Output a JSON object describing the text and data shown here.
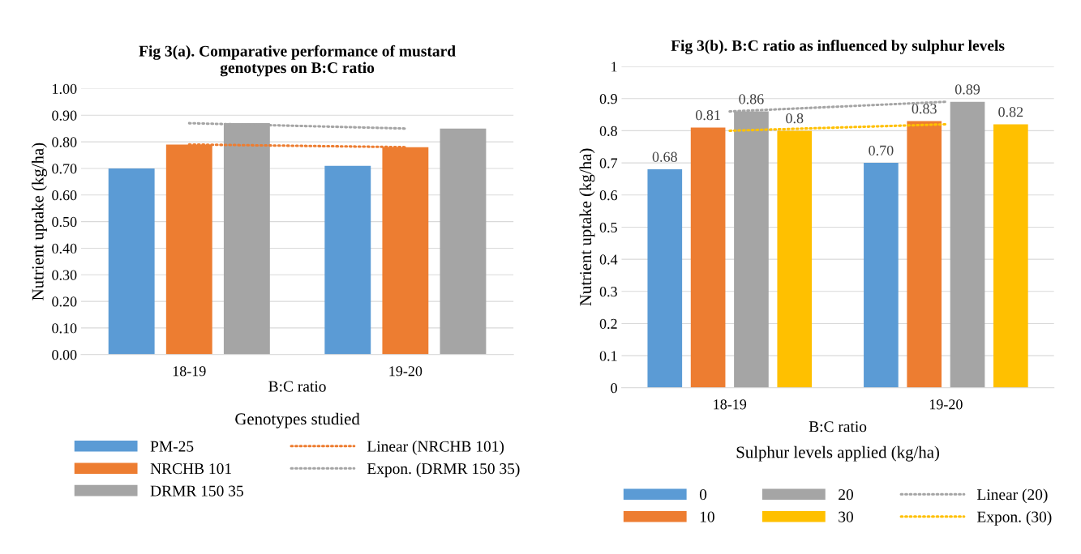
{
  "chart_data": [
    {
      "type": "bar",
      "title": "Fig 3(a). Comparative performance of mustard\ngenotypes on B:C ratio",
      "xlabel": "Genotypes studied",
      "ylabel": "Nutrient uptake (kg/ha)",
      "categories": [
        "18-19",
        "19-20"
      ],
      "annotations": [
        "B:C ratio"
      ],
      "series": [
        {
          "name": "PM-25",
          "color": "#5b9bd5",
          "values": [
            0.7,
            0.71
          ]
        },
        {
          "name": "NRCHB 101",
          "color": "#ed7d31",
          "values": [
            0.79,
            0.78
          ]
        },
        {
          "name": "DRMR 150 35",
          "color": "#a5a5a5",
          "values": [
            0.87,
            0.85
          ]
        },
        {
          "name": "Linear (NRCHB 101)",
          "type": "line",
          "line_style": "dotted",
          "color": "#ed7d31",
          "values": [
            0.79,
            0.78
          ]
        },
        {
          "name": "Expon. (DRMR 150 35)",
          "type": "line",
          "line_style": "dotted",
          "color": "#a5a5a5",
          "values": [
            0.87,
            0.85
          ]
        }
      ],
      "ylim": [
        0,
        1
      ],
      "yticks": [
        {
          "value": 0,
          "label": "0.00"
        },
        {
          "value": 0.1,
          "label": "0.10"
        },
        {
          "value": 0.2,
          "label": "0.20"
        },
        {
          "value": 0.3,
          "label": "0.30"
        },
        {
          "value": 0.4,
          "label": "0.40"
        },
        {
          "value": 0.5,
          "label": "0.50"
        },
        {
          "value": 0.6,
          "label": "0.60"
        },
        {
          "value": 0.7,
          "label": "0.70"
        },
        {
          "value": 0.8,
          "label": "0.80"
        },
        {
          "value": 0.9,
          "label": "0.90"
        },
        {
          "value": 1,
          "label": "1.00"
        }
      ],
      "grid": "y",
      "legend": "bottom"
    },
    {
      "type": "bar",
      "title": "Fig 3(b). B:C ratio as influenced by sulphur levels",
      "xlabel": "Sulphur levels applied (kg/ha)",
      "ylabel": "Nutrient uptake (kg/ha)",
      "categories": [
        "18-19",
        "19-20"
      ],
      "annotations": [
        "B:C ratio"
      ],
      "series": [
        {
          "name": "0",
          "color": "#5b9bd5",
          "values": [
            0.68,
            0.7
          ],
          "value_labels": [
            "0.68",
            "0.70"
          ]
        },
        {
          "name": "10",
          "color": "#ed7d31",
          "values": [
            0.81,
            0.83
          ],
          "value_labels": [
            "0.81",
            "0.83"
          ]
        },
        {
          "name": "20",
          "color": "#a5a5a5",
          "values": [
            0.86,
            0.89
          ],
          "value_labels": [
            "0.86",
            "0.89"
          ]
        },
        {
          "name": "30",
          "color": "#ffc000",
          "values": [
            0.8,
            0.82
          ],
          "value_labels": [
            "0.8",
            "0.82"
          ]
        },
        {
          "name": "Linear (20)",
          "type": "line",
          "line_style": "dotted",
          "color": "#a5a5a5",
          "values": [
            0.86,
            0.89
          ]
        },
        {
          "name": "Expon. (30)",
          "type": "line",
          "line_style": "dotted",
          "color": "#ffc000",
          "values": [
            0.8,
            0.82
          ]
        }
      ],
      "ylim": [
        0,
        1
      ],
      "yticks": [
        0,
        0.1,
        0.2,
        0.3,
        0.4,
        0.5,
        0.6,
        0.7,
        0.8,
        0.9,
        1
      ],
      "grid": "y",
      "legend": "bottom"
    }
  ]
}
